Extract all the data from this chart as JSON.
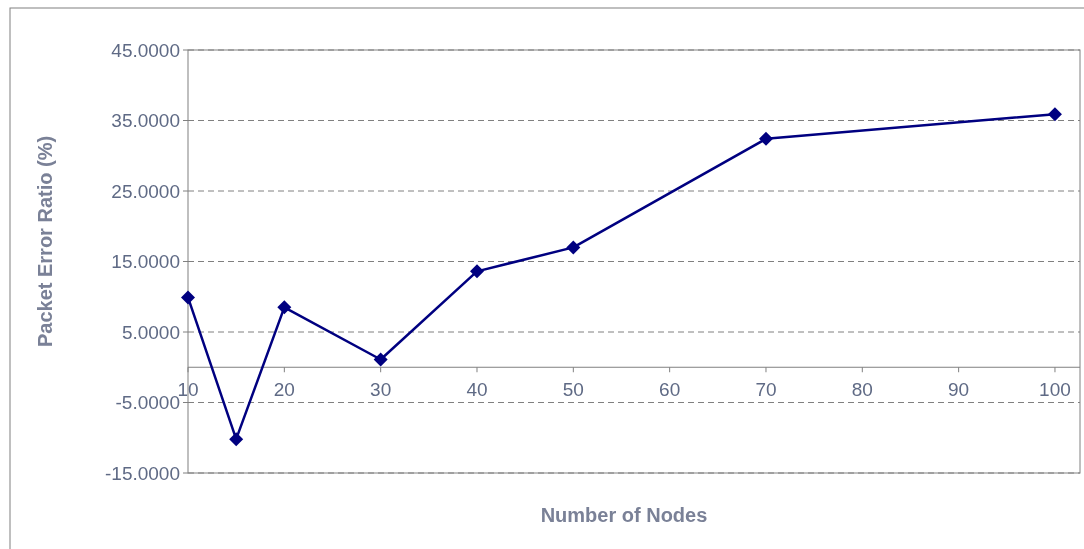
{
  "chart_data": {
    "type": "line",
    "xlabel": "Number of Nodes",
    "ylabel": "Packet Error Ratio (%)",
    "x": [
      10,
      15,
      20,
      30,
      40,
      50,
      70,
      100
    ],
    "series": [
      {
        "color": "#000080",
        "values": [
          9.9,
          -10.2,
          8.5,
          1.1,
          13.6,
          17.0,
          32.4,
          35.9
        ]
      }
    ],
    "xlim": [
      10,
      102.6
    ],
    "xticks": [
      10,
      20,
      30,
      40,
      50,
      60,
      70,
      80,
      90,
      100
    ],
    "ylim": [
      -15,
      45
    ],
    "yticks": [
      {
        "value": -15,
        "label": "-15.0000"
      },
      {
        "value": -5,
        "label": "-5.0000"
      },
      {
        "value": 5,
        "label": "5.0000"
      },
      {
        "value": 15,
        "label": "15.0000"
      },
      {
        "value": 25,
        "label": "25.0000"
      },
      {
        "value": 35,
        "label": "35.0000"
      },
      {
        "value": 45,
        "label": "45.0000"
      }
    ],
    "grid": "y",
    "marker": "diamond",
    "line_style": "solid"
  }
}
